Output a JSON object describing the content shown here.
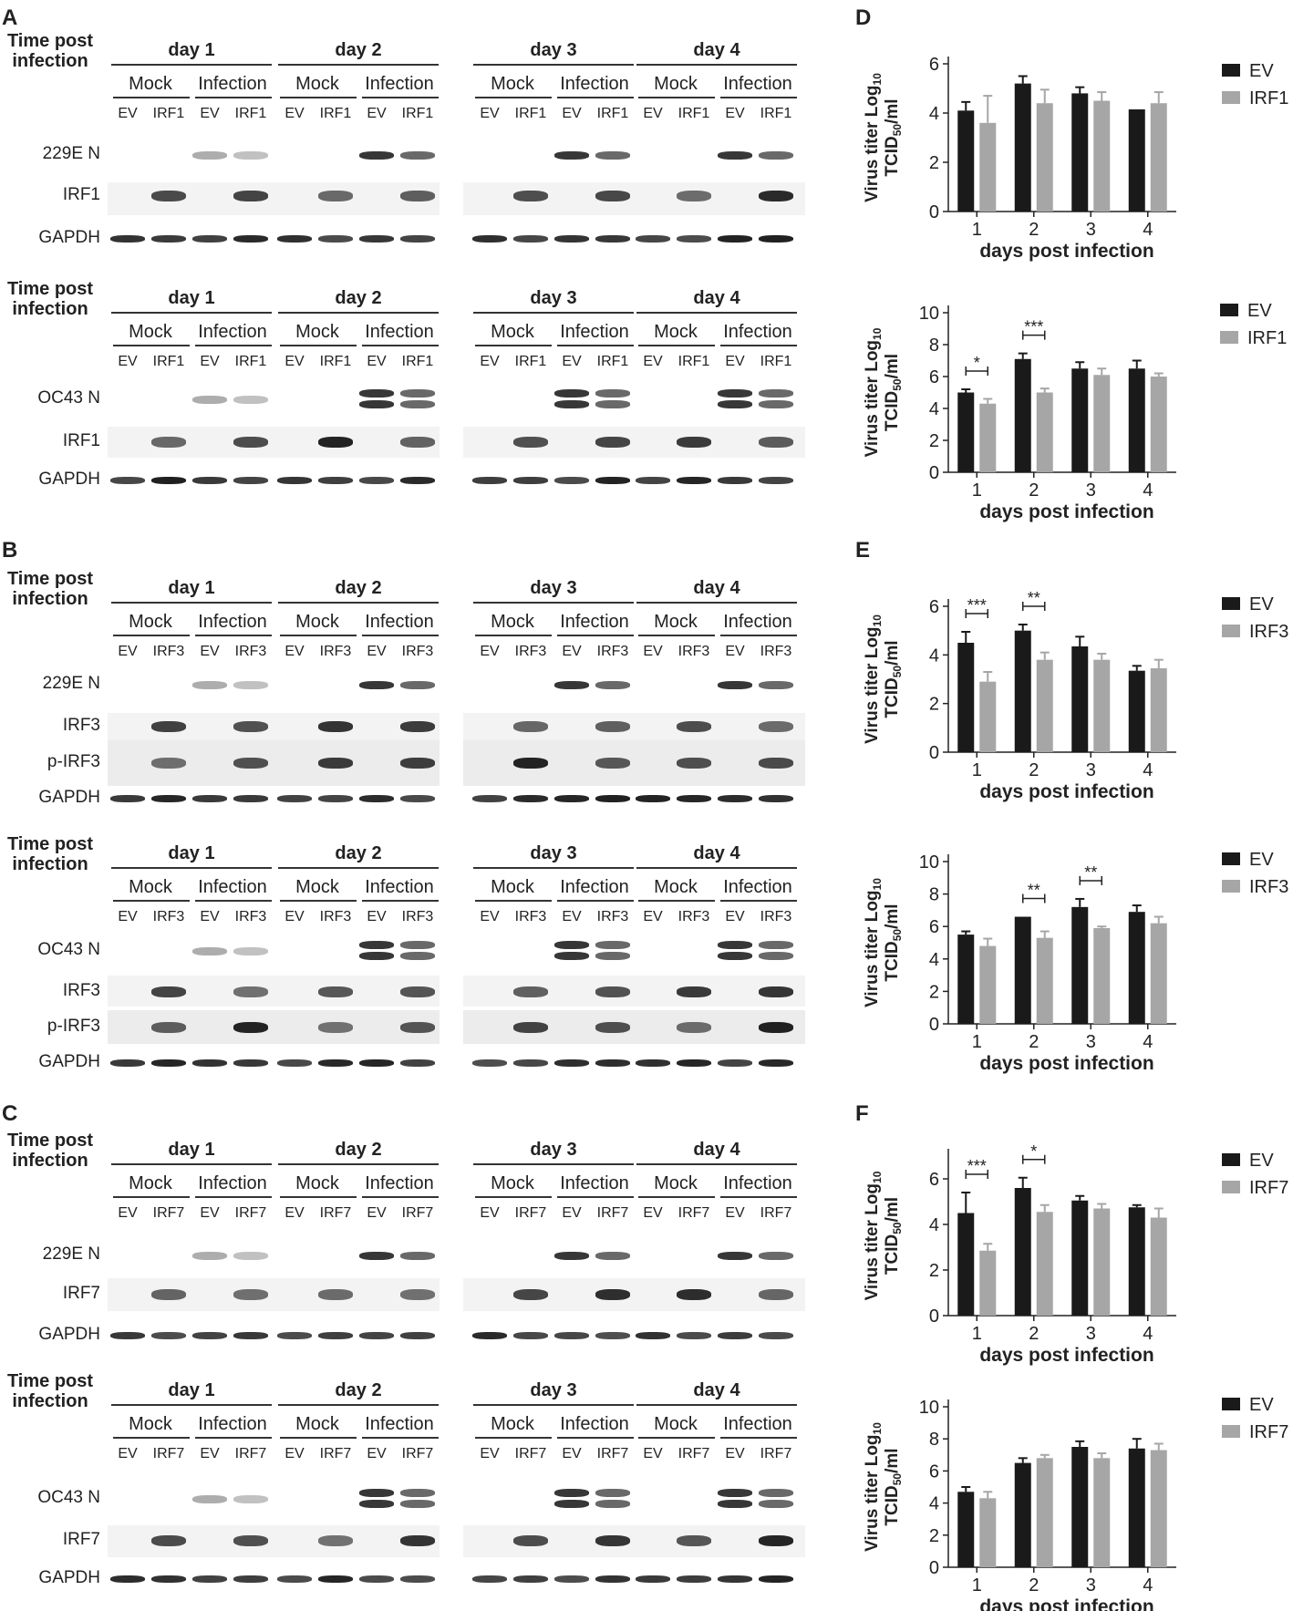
{
  "panel_letters": [
    "A",
    "B",
    "C",
    "D",
    "E",
    "F"
  ],
  "blot_header": {
    "time_post": "Time post",
    "infection": "infection",
    "days": [
      "day 1",
      "day 2",
      "day 3",
      "day 4"
    ],
    "conditions": [
      "Mock",
      "Infection"
    ],
    "ev": "EV"
  },
  "blots": [
    {
      "panel": "A",
      "construct": "IRF1",
      "rows": [
        "229E N",
        "IRF1",
        "GAPDH"
      ]
    },
    {
      "panel": "",
      "construct": "IRF1",
      "rows": [
        "OC43 N",
        "IRF1",
        "GAPDH"
      ]
    },
    {
      "panel": "B",
      "construct": "IRF3",
      "rows": [
        "229E N",
        "IRF3",
        "p-IRF3",
        "GAPDH"
      ]
    },
    {
      "panel": "",
      "construct": "IRF3",
      "rows": [
        "OC43 N",
        "IRF3",
        "p-IRF3",
        "GAPDH"
      ]
    },
    {
      "panel": "C",
      "construct": "IRF7",
      "rows": [
        "229E N",
        "IRF7",
        "GAPDH"
      ]
    },
    {
      "panel": "",
      "construct": "IRF7",
      "rows": [
        "OC43 N",
        "IRF7",
        "GAPDH"
      ]
    }
  ],
  "chart_ylabel_line1": "Virus titer Log",
  "chart_ylabel_sub10": "10",
  "chart_ylabel_line2a": "TCID",
  "chart_ylabel_sub50": "50",
  "chart_ylabel_line2b": "/ml",
  "chart_data": [
    {
      "panel": "D",
      "type": "bar",
      "xlabel": "days post infection",
      "categories": [
        "1",
        "2",
        "3",
        "4"
      ],
      "ylim": [
        0,
        6
      ],
      "yticks": [
        0,
        2,
        4,
        6
      ],
      "series": [
        {
          "name": "EV",
          "color": "#1a1a1a",
          "values": [
            4.1,
            5.2,
            4.8,
            4.15
          ],
          "errors": [
            0.35,
            0.3,
            0.25,
            0.0
          ]
        },
        {
          "name": "IRF1",
          "color": "#a6a6a6",
          "values": [
            3.6,
            4.4,
            4.5,
            4.4
          ],
          "errors": [
            1.1,
            0.55,
            0.35,
            0.45
          ]
        }
      ],
      "annotations": []
    },
    {
      "panel": "",
      "type": "bar",
      "xlabel": "days post infection",
      "categories": [
        "1",
        "2",
        "3",
        "4"
      ],
      "ylim": [
        0,
        10
      ],
      "yticks": [
        0,
        2,
        4,
        6,
        8,
        10
      ],
      "series": [
        {
          "name": "EV",
          "color": "#1a1a1a",
          "values": [
            5.0,
            7.1,
            6.5,
            6.5
          ],
          "errors": [
            0.2,
            0.35,
            0.4,
            0.5
          ]
        },
        {
          "name": "IRF1",
          "color": "#a6a6a6",
          "values": [
            4.3,
            5.0,
            6.1,
            6.0
          ],
          "errors": [
            0.3,
            0.25,
            0.4,
            0.2
          ]
        }
      ],
      "annotations": [
        {
          "category": "1",
          "text": "*"
        },
        {
          "category": "2",
          "text": "***"
        }
      ]
    },
    {
      "panel": "E",
      "type": "bar",
      "xlabel": "days post infection",
      "categories": [
        "1",
        "2",
        "3",
        "4"
      ],
      "ylim": [
        0,
        6
      ],
      "yticks": [
        0,
        2,
        4,
        6
      ],
      "series": [
        {
          "name": "EV",
          "color": "#1a1a1a",
          "values": [
            4.5,
            5.0,
            4.35,
            3.35
          ],
          "errors": [
            0.45,
            0.25,
            0.4,
            0.2
          ]
        },
        {
          "name": "IRF3",
          "color": "#a6a6a6",
          "values": [
            2.9,
            3.8,
            3.8,
            3.45
          ],
          "errors": [
            0.4,
            0.3,
            0.25,
            0.35
          ]
        }
      ],
      "annotations": [
        {
          "category": "1",
          "text": "***"
        },
        {
          "category": "2",
          "text": "**"
        }
      ]
    },
    {
      "panel": "",
      "type": "bar",
      "xlabel": "days post infection",
      "categories": [
        "1",
        "2",
        "3",
        "4"
      ],
      "ylim": [
        0,
        10
      ],
      "yticks": [
        0,
        2,
        4,
        6,
        8,
        10
      ],
      "series": [
        {
          "name": "EV",
          "color": "#1a1a1a",
          "values": [
            5.5,
            6.6,
            7.2,
            6.9
          ],
          "errors": [
            0.2,
            0.0,
            0.5,
            0.4
          ]
        },
        {
          "name": "IRF3",
          "color": "#a6a6a6",
          "values": [
            4.8,
            5.3,
            5.9,
            6.2
          ],
          "errors": [
            0.45,
            0.4,
            0.1,
            0.4
          ]
        }
      ],
      "annotations": [
        {
          "category": "2",
          "text": "**"
        },
        {
          "category": "3",
          "text": "**"
        }
      ]
    },
    {
      "panel": "F",
      "type": "bar",
      "xlabel": "days post infection",
      "categories": [
        "1",
        "2",
        "3",
        "4"
      ],
      "ylim": [
        0,
        7
      ],
      "yticks": [
        0,
        2,
        4,
        6
      ],
      "series": [
        {
          "name": "EV",
          "color": "#1a1a1a",
          "values": [
            4.5,
            5.6,
            5.05,
            4.75
          ],
          "errors": [
            0.9,
            0.45,
            0.2,
            0.1
          ]
        },
        {
          "name": "IRF7",
          "color": "#a6a6a6",
          "values": [
            2.85,
            4.55,
            4.7,
            4.3
          ],
          "errors": [
            0.3,
            0.3,
            0.2,
            0.4
          ]
        }
      ],
      "annotations": [
        {
          "category": "1",
          "text": "***"
        },
        {
          "category": "2",
          "text": "*"
        }
      ]
    },
    {
      "panel": "",
      "type": "bar",
      "xlabel": "days post infection",
      "categories": [
        "1",
        "2",
        "3",
        "4"
      ],
      "ylim": [
        0,
        10
      ],
      "yticks": [
        0,
        2,
        4,
        6,
        8,
        10
      ],
      "series": [
        {
          "name": "EV",
          "color": "#1a1a1a",
          "values": [
            4.7,
            6.5,
            7.5,
            7.4
          ],
          "errors": [
            0.3,
            0.3,
            0.35,
            0.6
          ]
        },
        {
          "name": "IRF7",
          "color": "#a6a6a6",
          "values": [
            4.3,
            6.8,
            6.8,
            7.3
          ],
          "errors": [
            0.4,
            0.2,
            0.3,
            0.4
          ]
        }
      ],
      "annotations": []
    }
  ]
}
